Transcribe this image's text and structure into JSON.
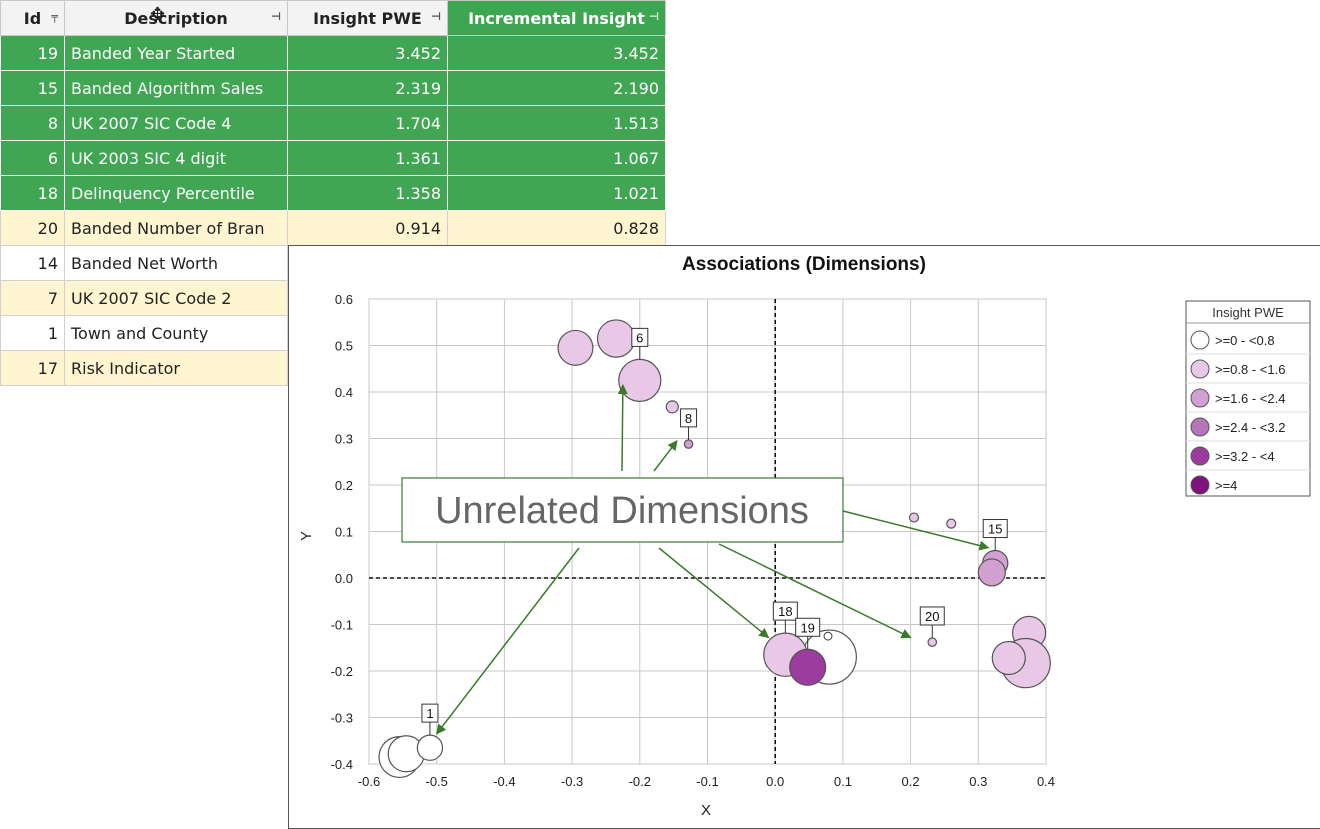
{
  "table": {
    "headers": {
      "id": "Id",
      "description": "Description",
      "insight_pwe": "Insight PWE",
      "incremental": "Incremental Insight"
    },
    "rows": [
      {
        "id": "19",
        "description": "Banded Year Started",
        "insight_pwe": "3.452",
        "incremental": "3.452",
        "style": "sel"
      },
      {
        "id": "15",
        "description": "Banded Algorithm Sales",
        "insight_pwe": "2.319",
        "incremental": "2.190",
        "style": "sel"
      },
      {
        "id": "8",
        "description": "UK 2007 SIC Code 4",
        "insight_pwe": "1.704",
        "incremental": "1.513",
        "style": "sel"
      },
      {
        "id": "6",
        "description": "UK 2003 SIC 4 digit",
        "insight_pwe": "1.361",
        "incremental": "1.067",
        "style": "sel"
      },
      {
        "id": "18",
        "description": "Delinquency Percentile",
        "insight_pwe": "1.358",
        "incremental": "1.021",
        "style": "sel focus"
      },
      {
        "id": "20",
        "description": "Banded Number of Bran",
        "insight_pwe": "0.914",
        "incremental": "0.828",
        "style": "alt"
      },
      {
        "id": "14",
        "description": "Banded Net Worth",
        "insight_pwe": "",
        "incremental": "",
        "style": "plain"
      },
      {
        "id": "7",
        "description": "UK 2007 SIC Code 2",
        "insight_pwe": "",
        "incremental": "",
        "style": "alt"
      },
      {
        "id": "1",
        "description": "Town and County",
        "insight_pwe": "",
        "incremental": "",
        "style": "plain"
      },
      {
        "id": "17",
        "description": "Risk Indicator",
        "insight_pwe": "",
        "incremental": "",
        "style": "alt"
      }
    ],
    "colors": {
      "selected": "#41a653",
      "alternate": "#fff6d1"
    }
  },
  "chart_data": {
    "type": "scatter",
    "title": "Associations (Dimensions)",
    "xlabel": "X",
    "ylabel": "Y",
    "xlim": [
      -0.6,
      0.4
    ],
    "ylim": [
      -0.4,
      0.6
    ],
    "xticks": [
      "-0.6",
      "-0.5",
      "-0.4",
      "-0.3",
      "-0.2",
      "-0.1",
      "0.0",
      "0.1",
      "0.2",
      "0.3",
      "0.4"
    ],
    "yticks": [
      "-0.4",
      "-0.3",
      "-0.2",
      "-0.1",
      "0.0",
      "0.1",
      "0.2",
      "0.3",
      "0.4",
      "0.5",
      "0.6"
    ],
    "grid": true,
    "legend_position": "right",
    "legend": {
      "title": "Insight PWE",
      "entries": [
        {
          "label": ">=0 - <0.8",
          "color": "#ffffff"
        },
        {
          "label": ">=0.8 - <1.6",
          "color": "#e8c8e6"
        },
        {
          "label": ">=1.6 - <2.4",
          "color": "#d1a0d0"
        },
        {
          "label": ">=2.4 - <3.2",
          "color": "#b673b7"
        },
        {
          "label": ">=3.2 - <4",
          "color": "#9b3c9e"
        },
        {
          "label": ">=4",
          "color": "#7e127f"
        }
      ]
    },
    "points": [
      {
        "x": -0.295,
        "y": 0.495,
        "r": 0.58,
        "color": "#e8c8e6",
        "label": ""
      },
      {
        "x": -0.235,
        "y": 0.515,
        "r": 0.62,
        "color": "#e8c8e6",
        "label": ""
      },
      {
        "x": -0.2,
        "y": 0.425,
        "r": 0.7,
        "color": "#e8c8e6",
        "label": "6"
      },
      {
        "x": -0.152,
        "y": 0.368,
        "r": 0.2,
        "color": "#e8c8e6",
        "label": ""
      },
      {
        "x": -0.128,
        "y": 0.288,
        "r": 0.14,
        "color": "#d1a0d0",
        "label": "8"
      },
      {
        "x": 0.205,
        "y": 0.13,
        "r": 0.15,
        "color": "#e8c8e6",
        "label": ""
      },
      {
        "x": 0.26,
        "y": 0.117,
        "r": 0.15,
        "color": "#e8c8e6",
        "label": ""
      },
      {
        "x": 0.325,
        "y": 0.032,
        "r": 0.42,
        "color": "#d1a0d0",
        "label": "15"
      },
      {
        "x": 0.32,
        "y": 0.012,
        "r": 0.45,
        "color": "#d1a0d0",
        "label": ""
      },
      {
        "x": 0.232,
        "y": -0.138,
        "r": 0.14,
        "color": "#e8c8e6",
        "label": "20"
      },
      {
        "x": 0.375,
        "y": -0.118,
        "r": 0.55,
        "color": "#e8c8e6",
        "label": ""
      },
      {
        "x": 0.37,
        "y": -0.183,
        "r": 0.82,
        "color": "#e8c8e6",
        "label": ""
      },
      {
        "x": 0.345,
        "y": -0.172,
        "r": 0.55,
        "color": "#e8c8e6",
        "label": ""
      },
      {
        "x": 0.08,
        "y": -0.17,
        "r": 0.9,
        "color": "#ffffff",
        "label": ""
      },
      {
        "x": 0.078,
        "y": -0.125,
        "r": 0.13,
        "color": "#ffffff",
        "label": ""
      },
      {
        "x": 0.015,
        "y": -0.165,
        "r": 0.72,
        "color": "#e8c8e6",
        "label": "18"
      },
      {
        "x": 0.048,
        "y": -0.192,
        "r": 0.6,
        "color": "#9b3c9e",
        "label": "19"
      },
      {
        "x": -0.555,
        "y": -0.385,
        "r": 0.68,
        "color": "#ffffff",
        "label": ""
      },
      {
        "x": -0.545,
        "y": -0.378,
        "r": 0.6,
        "color": "#ffffff",
        "label": ""
      },
      {
        "x": -0.51,
        "y": -0.365,
        "r": 0.42,
        "color": "#ffffff",
        "label": "1"
      }
    ],
    "annotation": {
      "text": "Unrelated Dimensions",
      "arrows_to": [
        {
          "x": -0.225,
          "y": 0.415
        },
        {
          "x": -0.145,
          "y": 0.295
        },
        {
          "x": 0.315,
          "y": 0.065
        },
        {
          "x": 0.2,
          "y": -0.128
        },
        {
          "x": -0.01,
          "y": -0.128
        },
        {
          "x": -0.5,
          "y": -0.335
        }
      ]
    }
  }
}
